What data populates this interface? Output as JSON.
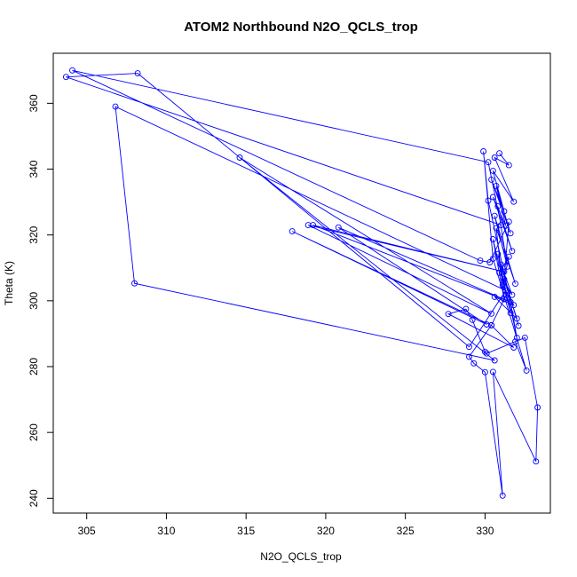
{
  "chart_data": {
    "type": "line",
    "title": "ATOM2 Northbound N2O_QCLS_trop",
    "xlabel": "N2O_QCLS_trop",
    "ylabel": "Theta (K)",
    "xlim": [
      302.9,
      334.1
    ],
    "ylim": [
      235.5,
      375.2
    ],
    "xticks": [
      305,
      310,
      315,
      320,
      325,
      330
    ],
    "yticks": [
      240,
      260,
      280,
      300,
      320,
      340,
      360
    ],
    "grid": false,
    "series": [
      {
        "color": "#0000ff",
        "x": [
          330.9,
          331.5,
          330.6,
          331.8,
          330.5,
          331.2,
          330.4,
          331.6,
          330.7,
          331.3,
          330.5,
          331.7,
          330.8,
          331.4,
          330.6,
          331.9,
          330.7,
          331.2,
          330.5,
          331.6,
          330.8,
          332.1,
          331.0,
          331.7,
          330.9,
          331.5,
          331.1,
          331.8,
          330.6,
          332.0,
          331.2,
          331.5,
          330.3,
          329.7,
          304.1,
          330.2,
          331.0,
          303.7,
          308.2,
          329.0,
          331.3,
          306.8,
          308.0,
          330.6,
          314.6,
          330.4,
          318.9,
          331.2,
          319.2,
          331.6,
          320.8,
          330.1,
          317.9,
          330.4,
          331.8,
          327.7,
          328.8,
          329.2,
          330.0,
          330.1,
          332.5,
          333.3,
          333.2,
          330.5,
          331.1,
          330.0,
          329.3,
          329.0,
          330.4,
          331.4,
          332.0,
          331.6,
          330.2,
          329.9,
          330.5,
          332.6,
          331.9
        ],
        "y": [
          344.8,
          341.2,
          343.5,
          330.1,
          339.5,
          327.2,
          336.8,
          320.5,
          334.9,
          322.8,
          331.5,
          315.1,
          328.7,
          310.4,
          325.8,
          305.2,
          322.1,
          300.5,
          318.7,
          296.3,
          314.2,
          292.4,
          311.0,
          301.8,
          308.5,
          313.4,
          304.7,
          298.7,
          301.2,
          294.6,
          306.5,
          324.0,
          311.7,
          312.2,
          370.0,
          342.1,
          323.0,
          368.0,
          369.1,
          286.0,
          303.1,
          359.0,
          305.3,
          281.9,
          343.5,
          296.1,
          323.0,
          308.8,
          323.0,
          299.6,
          322.3,
          292.8,
          321.1,
          292.5,
          285.8,
          296.0,
          297.5,
          294.2,
          284.5,
          284.0,
          288.8,
          267.6,
          251.2,
          278.4,
          240.8,
          278.3,
          281.0,
          283.0,
          292.6,
          302.4,
          288.8,
          299.6,
          330.4,
          345.4,
          312.8,
          278.8,
          287.6
        ]
      }
    ]
  }
}
